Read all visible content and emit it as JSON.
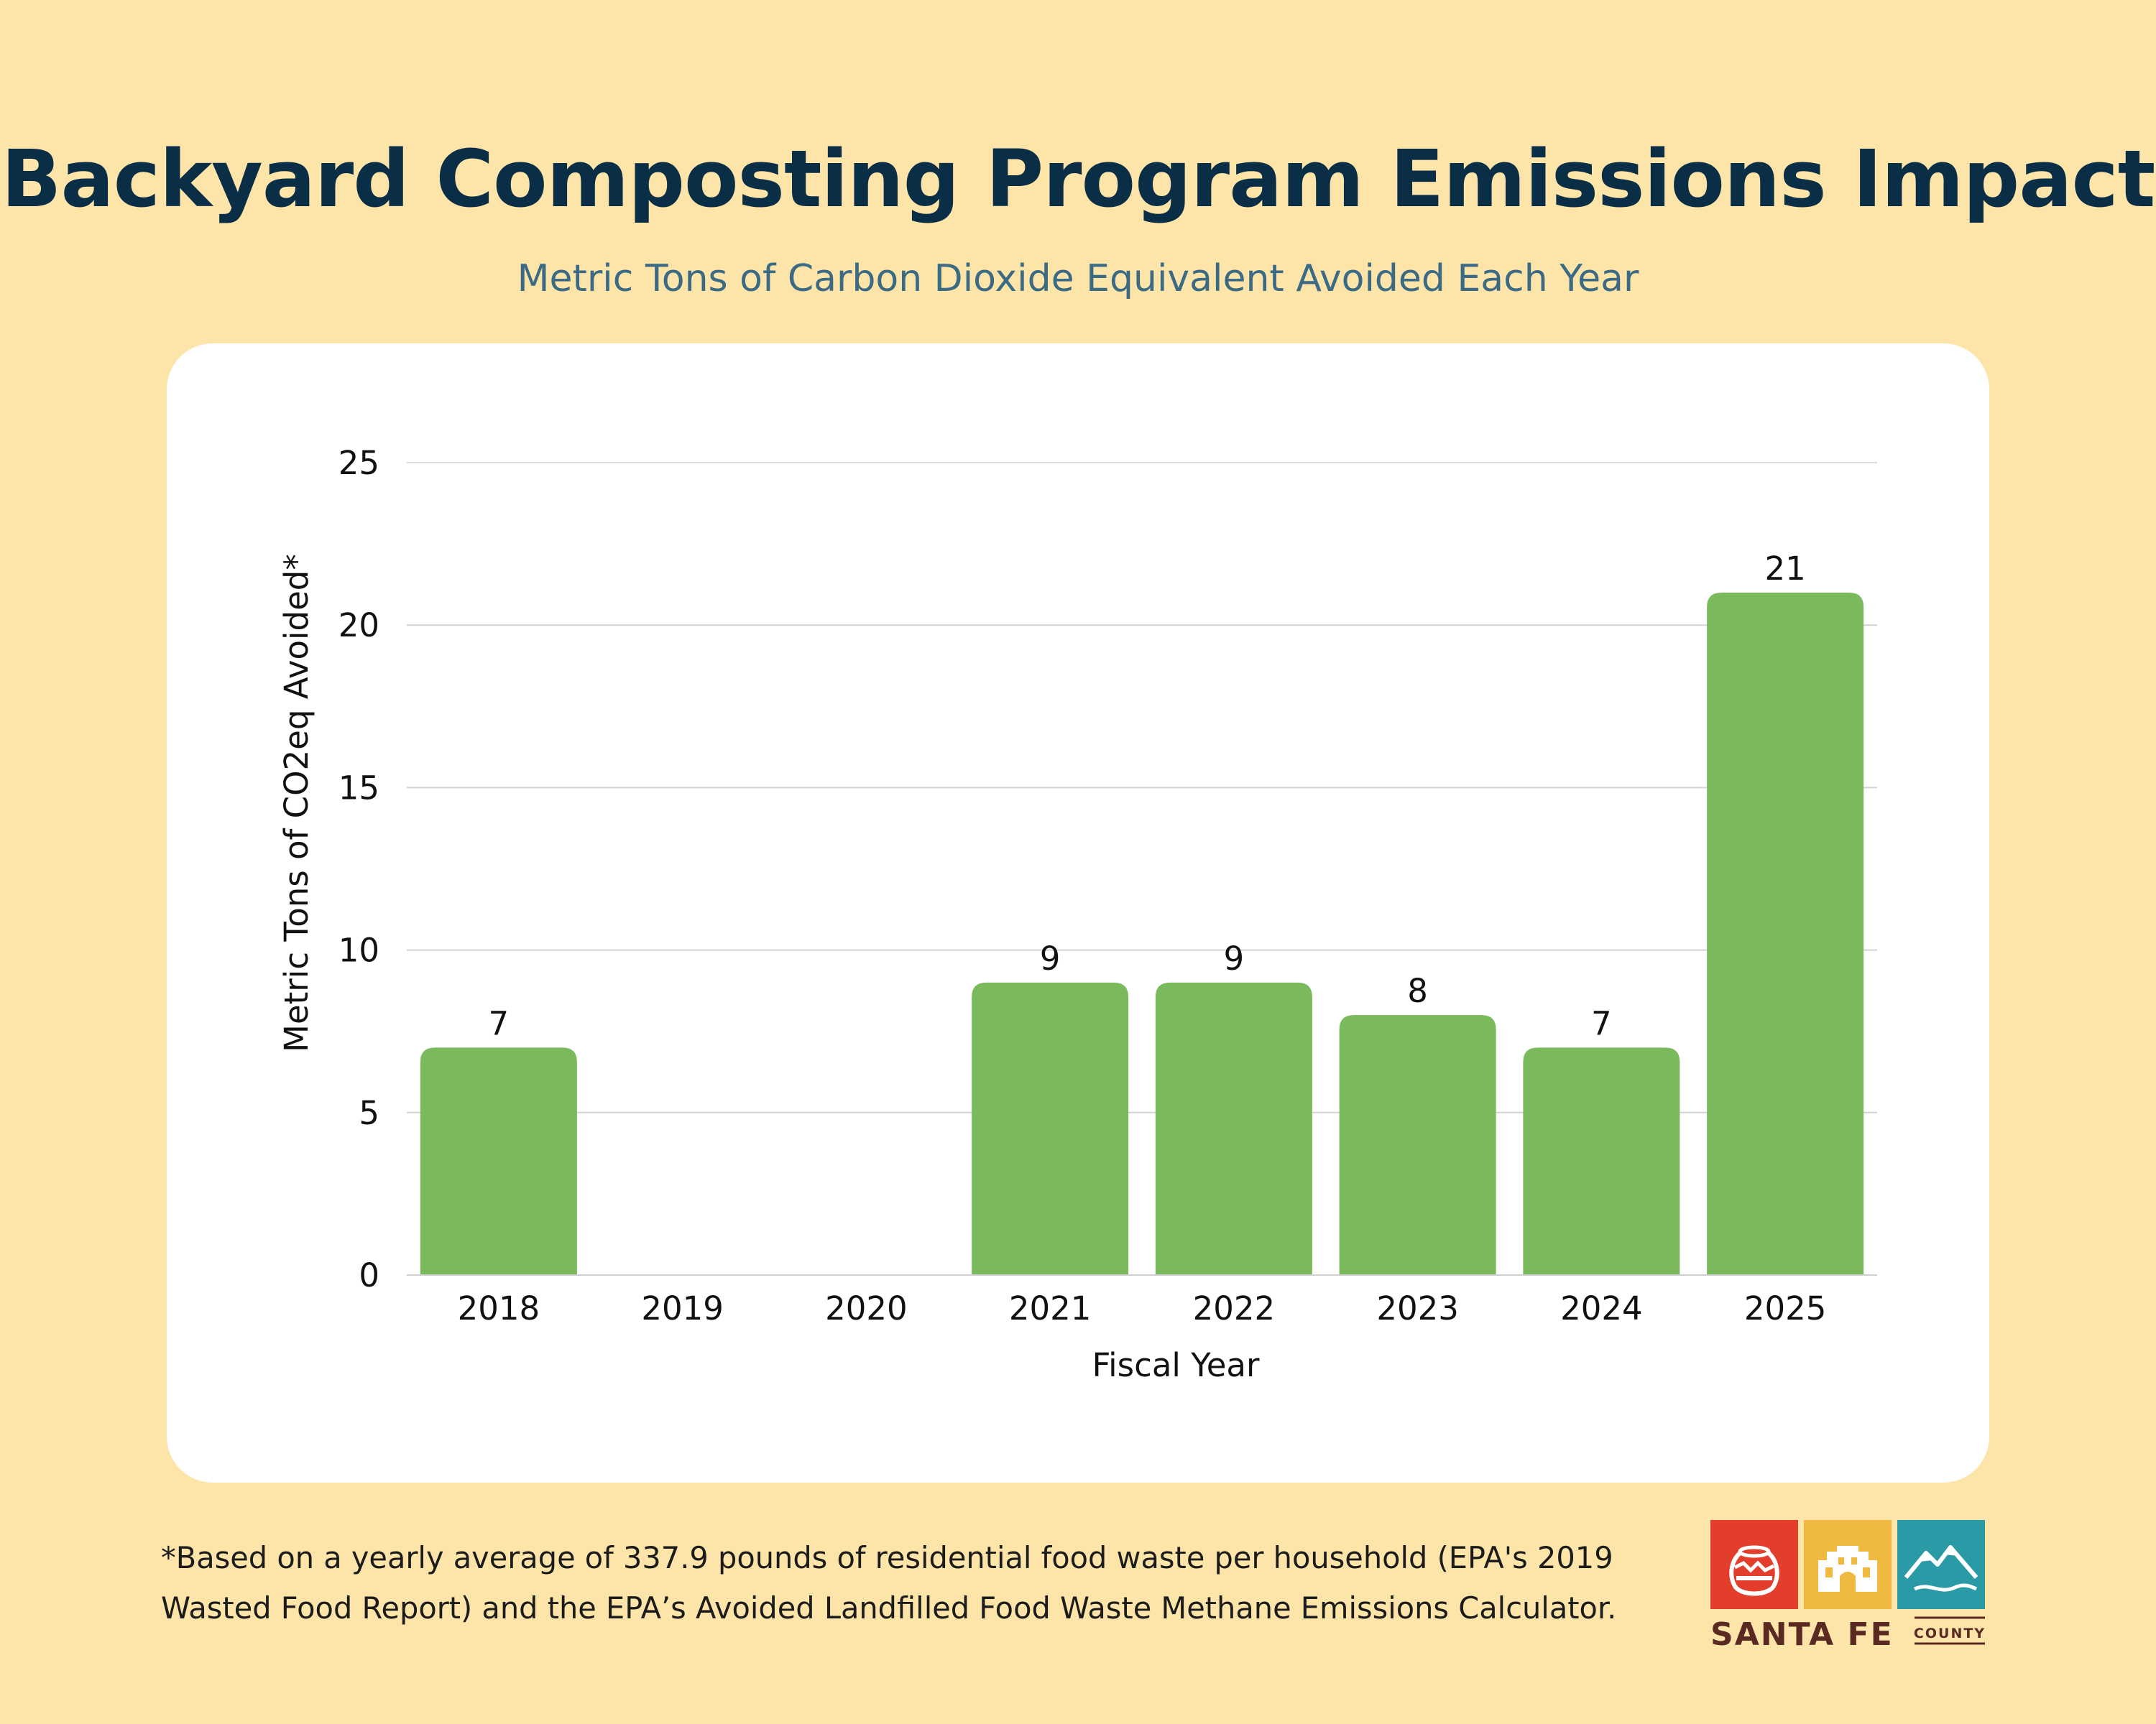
{
  "header": {
    "title": "Backyard Composting Program Emissions Impact",
    "subtitle": "Metric Tons of Carbon Dioxide Equivalent Avoided Each Year"
  },
  "chart_data": {
    "type": "bar",
    "title": "Backyard Composting Program Emissions Impact",
    "subtitle": "Metric Tons of Carbon Dioxide Equivalent Avoided Each Year",
    "xlabel": "Fiscal Year",
    "ylabel": "Metric Tons of CO2eq Avoided*",
    "categories": [
      "2018",
      "2019",
      "2020",
      "2021",
      "2022",
      "2023",
      "2024",
      "2025"
    ],
    "values": [
      7,
      null,
      null,
      9,
      9,
      8,
      7,
      21
    ],
    "data_labels": [
      "7",
      "",
      "",
      "9",
      "9",
      "8",
      "7",
      "21"
    ],
    "ylim": [
      0,
      25
    ],
    "yticks": [
      0,
      5,
      10,
      15,
      20,
      25
    ],
    "grid": true,
    "legend": "none",
    "bar_color": "#7aba5c",
    "grid_color": "#d2d2d2"
  },
  "footnote": {
    "line1": "*Based on a yearly average of 337.9 pounds of residential food waste per household (EPA's 2019",
    "line2": "Wasted Food Report) and the EPA’s Avoided Landfilled Food Waste Methane Emissions Calculator."
  },
  "logo": {
    "text_main": "SANTA FE",
    "text_sub": "COUNTY",
    "icons": [
      "pottery-icon",
      "adobe-building-icon",
      "mountain-icon"
    ],
    "colors": [
      "#e33d2b",
      "#f0b93f",
      "#2a9aa6"
    ],
    "text_color": "#5a2a22"
  },
  "colors": {
    "background": "#fde4a8",
    "title": "#0b2e47",
    "subtitle": "#3a6a84",
    "card": "#ffffff"
  }
}
